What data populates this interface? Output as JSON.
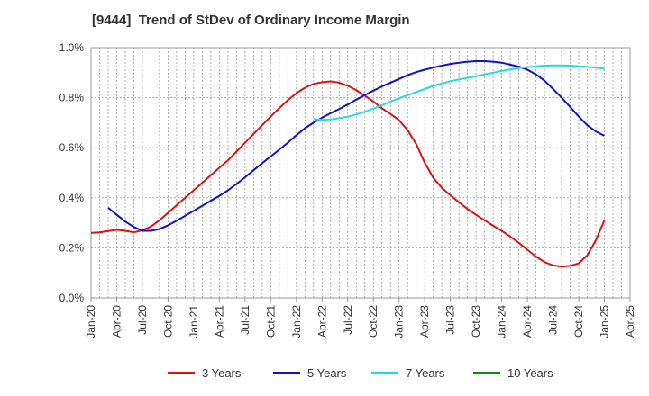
{
  "chart_data": {
    "type": "line",
    "title": "[9444]  Trend of StDev of Ordinary Income Margin",
    "xlabel": "",
    "ylabel": "",
    "x_ticks": [
      "Jan-20",
      "Apr-20",
      "Jul-20",
      "Oct-20",
      "Jan-21",
      "Apr-21",
      "Jul-21",
      "Oct-21",
      "Jan-22",
      "Apr-22",
      "Jul-22",
      "Oct-22",
      "Jan-23",
      "Apr-23",
      "Jul-23",
      "Oct-23",
      "Jan-24",
      "Apr-24",
      "Jul-24",
      "Oct-24",
      "Jan-25",
      "Apr-25"
    ],
    "y_ticks": [
      "0.0%",
      "0.2%",
      "0.4%",
      "0.6%",
      "0.8%",
      "1.0%"
    ],
    "ylim": [
      0,
      1.0
    ],
    "y_unit": "%",
    "grid": true,
    "legend_position": "bottom",
    "series": [
      {
        "name": "3 Years",
        "color": "#dd1111",
        "points": [
          [
            "Jan-20",
            0.26
          ],
          [
            "Feb-20",
            0.262
          ],
          [
            "Mar-20",
            0.267
          ],
          [
            "Apr-20",
            0.272
          ],
          [
            "May-20",
            0.268
          ],
          [
            "Jun-20",
            0.262
          ],
          [
            "Jul-20",
            0.27
          ],
          [
            "Aug-20",
            0.285
          ],
          [
            "Sep-20",
            0.31
          ],
          [
            "Oct-20",
            0.34
          ],
          [
            "Nov-20",
            0.37
          ],
          [
            "Dec-20",
            0.4
          ],
          [
            "Jan-21",
            0.43
          ],
          [
            "Feb-21",
            0.46
          ],
          [
            "Mar-21",
            0.49
          ],
          [
            "Apr-21",
            0.52
          ],
          [
            "May-21",
            0.55
          ],
          [
            "Jun-21",
            0.585
          ],
          [
            "Jul-21",
            0.62
          ],
          [
            "Aug-21",
            0.655
          ],
          [
            "Sep-21",
            0.69
          ],
          [
            "Oct-21",
            0.725
          ],
          [
            "Nov-21",
            0.758
          ],
          [
            "Dec-21",
            0.79
          ],
          [
            "Jan-22",
            0.818
          ],
          [
            "Feb-22",
            0.84
          ],
          [
            "Mar-22",
            0.855
          ],
          [
            "Apr-22",
            0.862
          ],
          [
            "May-22",
            0.865
          ],
          [
            "Jun-22",
            0.86
          ],
          [
            "Jul-22",
            0.848
          ],
          [
            "Aug-22",
            0.83
          ],
          [
            "Sep-22",
            0.808
          ],
          [
            "Oct-22",
            0.785
          ],
          [
            "Nov-22",
            0.758
          ],
          [
            "Dec-22",
            0.735
          ],
          [
            "Jan-23",
            0.71
          ],
          [
            "Feb-23",
            0.67
          ],
          [
            "Mar-23",
            0.615
          ],
          [
            "Apr-23",
            0.54
          ],
          [
            "May-23",
            0.48
          ],
          [
            "Jun-23",
            0.44
          ],
          [
            "Jul-23",
            0.41
          ],
          [
            "Aug-23",
            0.382
          ],
          [
            "Sep-23",
            0.355
          ],
          [
            "Oct-23",
            0.332
          ],
          [
            "Nov-23",
            0.31
          ],
          [
            "Dec-23",
            0.288
          ],
          [
            "Jan-24",
            0.268
          ],
          [
            "Feb-24",
            0.245
          ],
          [
            "Mar-24",
            0.22
          ],
          [
            "Apr-24",
            0.192
          ],
          [
            "May-24",
            0.165
          ],
          [
            "Jun-24",
            0.143
          ],
          [
            "Jul-24",
            0.13
          ],
          [
            "Aug-24",
            0.125
          ],
          [
            "Sep-24",
            0.128
          ],
          [
            "Oct-24",
            0.138
          ],
          [
            "Nov-24",
            0.17
          ],
          [
            "Dec-24",
            0.23
          ],
          [
            "Jan-25",
            0.31
          ]
        ]
      },
      {
        "name": "5 Years",
        "color": "#1111cc",
        "points": [
          [
            "Mar-20",
            0.36
          ],
          [
            "Apr-20",
            0.332
          ],
          [
            "May-20",
            0.305
          ],
          [
            "Jun-20",
            0.283
          ],
          [
            "Jul-20",
            0.268
          ],
          [
            "Aug-20",
            0.268
          ],
          [
            "Sep-20",
            0.275
          ],
          [
            "Oct-20",
            0.29
          ],
          [
            "Nov-20",
            0.308
          ],
          [
            "Dec-20",
            0.328
          ],
          [
            "Jan-21",
            0.348
          ],
          [
            "Feb-21",
            0.368
          ],
          [
            "Mar-21",
            0.388
          ],
          [
            "Apr-21",
            0.408
          ],
          [
            "May-21",
            0.43
          ],
          [
            "Jun-21",
            0.455
          ],
          [
            "Jul-21",
            0.482
          ],
          [
            "Aug-21",
            0.51
          ],
          [
            "Sep-21",
            0.538
          ],
          [
            "Oct-21",
            0.565
          ],
          [
            "Nov-21",
            0.592
          ],
          [
            "Dec-21",
            0.62
          ],
          [
            "Jan-22",
            0.65
          ],
          [
            "Feb-22",
            0.678
          ],
          [
            "Mar-22",
            0.7
          ],
          [
            "Apr-22",
            0.72
          ],
          [
            "May-22",
            0.738
          ],
          [
            "Jun-22",
            0.755
          ],
          [
            "Jul-22",
            0.773
          ],
          [
            "Aug-22",
            0.792
          ],
          [
            "Sep-22",
            0.81
          ],
          [
            "Oct-22",
            0.828
          ],
          [
            "Nov-22",
            0.845
          ],
          [
            "Dec-22",
            0.86
          ],
          [
            "Jan-23",
            0.875
          ],
          [
            "Feb-23",
            0.89
          ],
          [
            "Mar-23",
            0.902
          ],
          [
            "Apr-23",
            0.912
          ],
          [
            "May-23",
            0.92
          ],
          [
            "Jun-23",
            0.928
          ],
          [
            "Jul-23",
            0.935
          ],
          [
            "Aug-23",
            0.94
          ],
          [
            "Sep-23",
            0.944
          ],
          [
            "Oct-23",
            0.946
          ],
          [
            "Nov-23",
            0.946
          ],
          [
            "Dec-23",
            0.944
          ],
          [
            "Jan-24",
            0.94
          ],
          [
            "Feb-24",
            0.932
          ],
          [
            "Mar-24",
            0.924
          ],
          [
            "Apr-24",
            0.912
          ],
          [
            "May-24",
            0.893
          ],
          [
            "Jun-24",
            0.868
          ],
          [
            "Jul-24",
            0.835
          ],
          [
            "Aug-24",
            0.8
          ],
          [
            "Sep-24",
            0.763
          ],
          [
            "Oct-24",
            0.725
          ],
          [
            "Nov-24",
            0.69
          ],
          [
            "Dec-24",
            0.665
          ],
          [
            "Jan-25",
            0.648
          ]
        ]
      },
      {
        "name": "7 Years",
        "color": "#22dddd",
        "points": [
          [
            "Mar-22",
            0.715
          ],
          [
            "Apr-22",
            0.712
          ],
          [
            "May-22",
            0.713
          ],
          [
            "Jun-22",
            0.718
          ],
          [
            "Jul-22",
            0.724
          ],
          [
            "Aug-22",
            0.733
          ],
          [
            "Sep-22",
            0.744
          ],
          [
            "Oct-22",
            0.756
          ],
          [
            "Nov-22",
            0.77
          ],
          [
            "Dec-22",
            0.784
          ],
          [
            "Jan-23",
            0.798
          ],
          [
            "Feb-23",
            0.81
          ],
          [
            "Mar-23",
            0.822
          ],
          [
            "Apr-23",
            0.835
          ],
          [
            "May-23",
            0.847
          ],
          [
            "Jun-23",
            0.857
          ],
          [
            "Jul-23",
            0.866
          ],
          [
            "Aug-23",
            0.873
          ],
          [
            "Sep-23",
            0.879
          ],
          [
            "Oct-23",
            0.886
          ],
          [
            "Nov-23",
            0.893
          ],
          [
            "Dec-23",
            0.9
          ],
          [
            "Jan-24",
            0.907
          ],
          [
            "Feb-24",
            0.913
          ],
          [
            "Mar-24",
            0.918
          ],
          [
            "Apr-24",
            0.922
          ],
          [
            "May-24",
            0.925
          ],
          [
            "Jun-24",
            0.928
          ],
          [
            "Jul-24",
            0.929
          ],
          [
            "Aug-24",
            0.929
          ],
          [
            "Sep-24",
            0.928
          ],
          [
            "Oct-24",
            0.926
          ],
          [
            "Nov-24",
            0.923
          ],
          [
            "Dec-24",
            0.92
          ],
          [
            "Jan-25",
            0.916
          ]
        ]
      },
      {
        "name": "10 Years",
        "color": "#118811",
        "points": []
      }
    ]
  }
}
